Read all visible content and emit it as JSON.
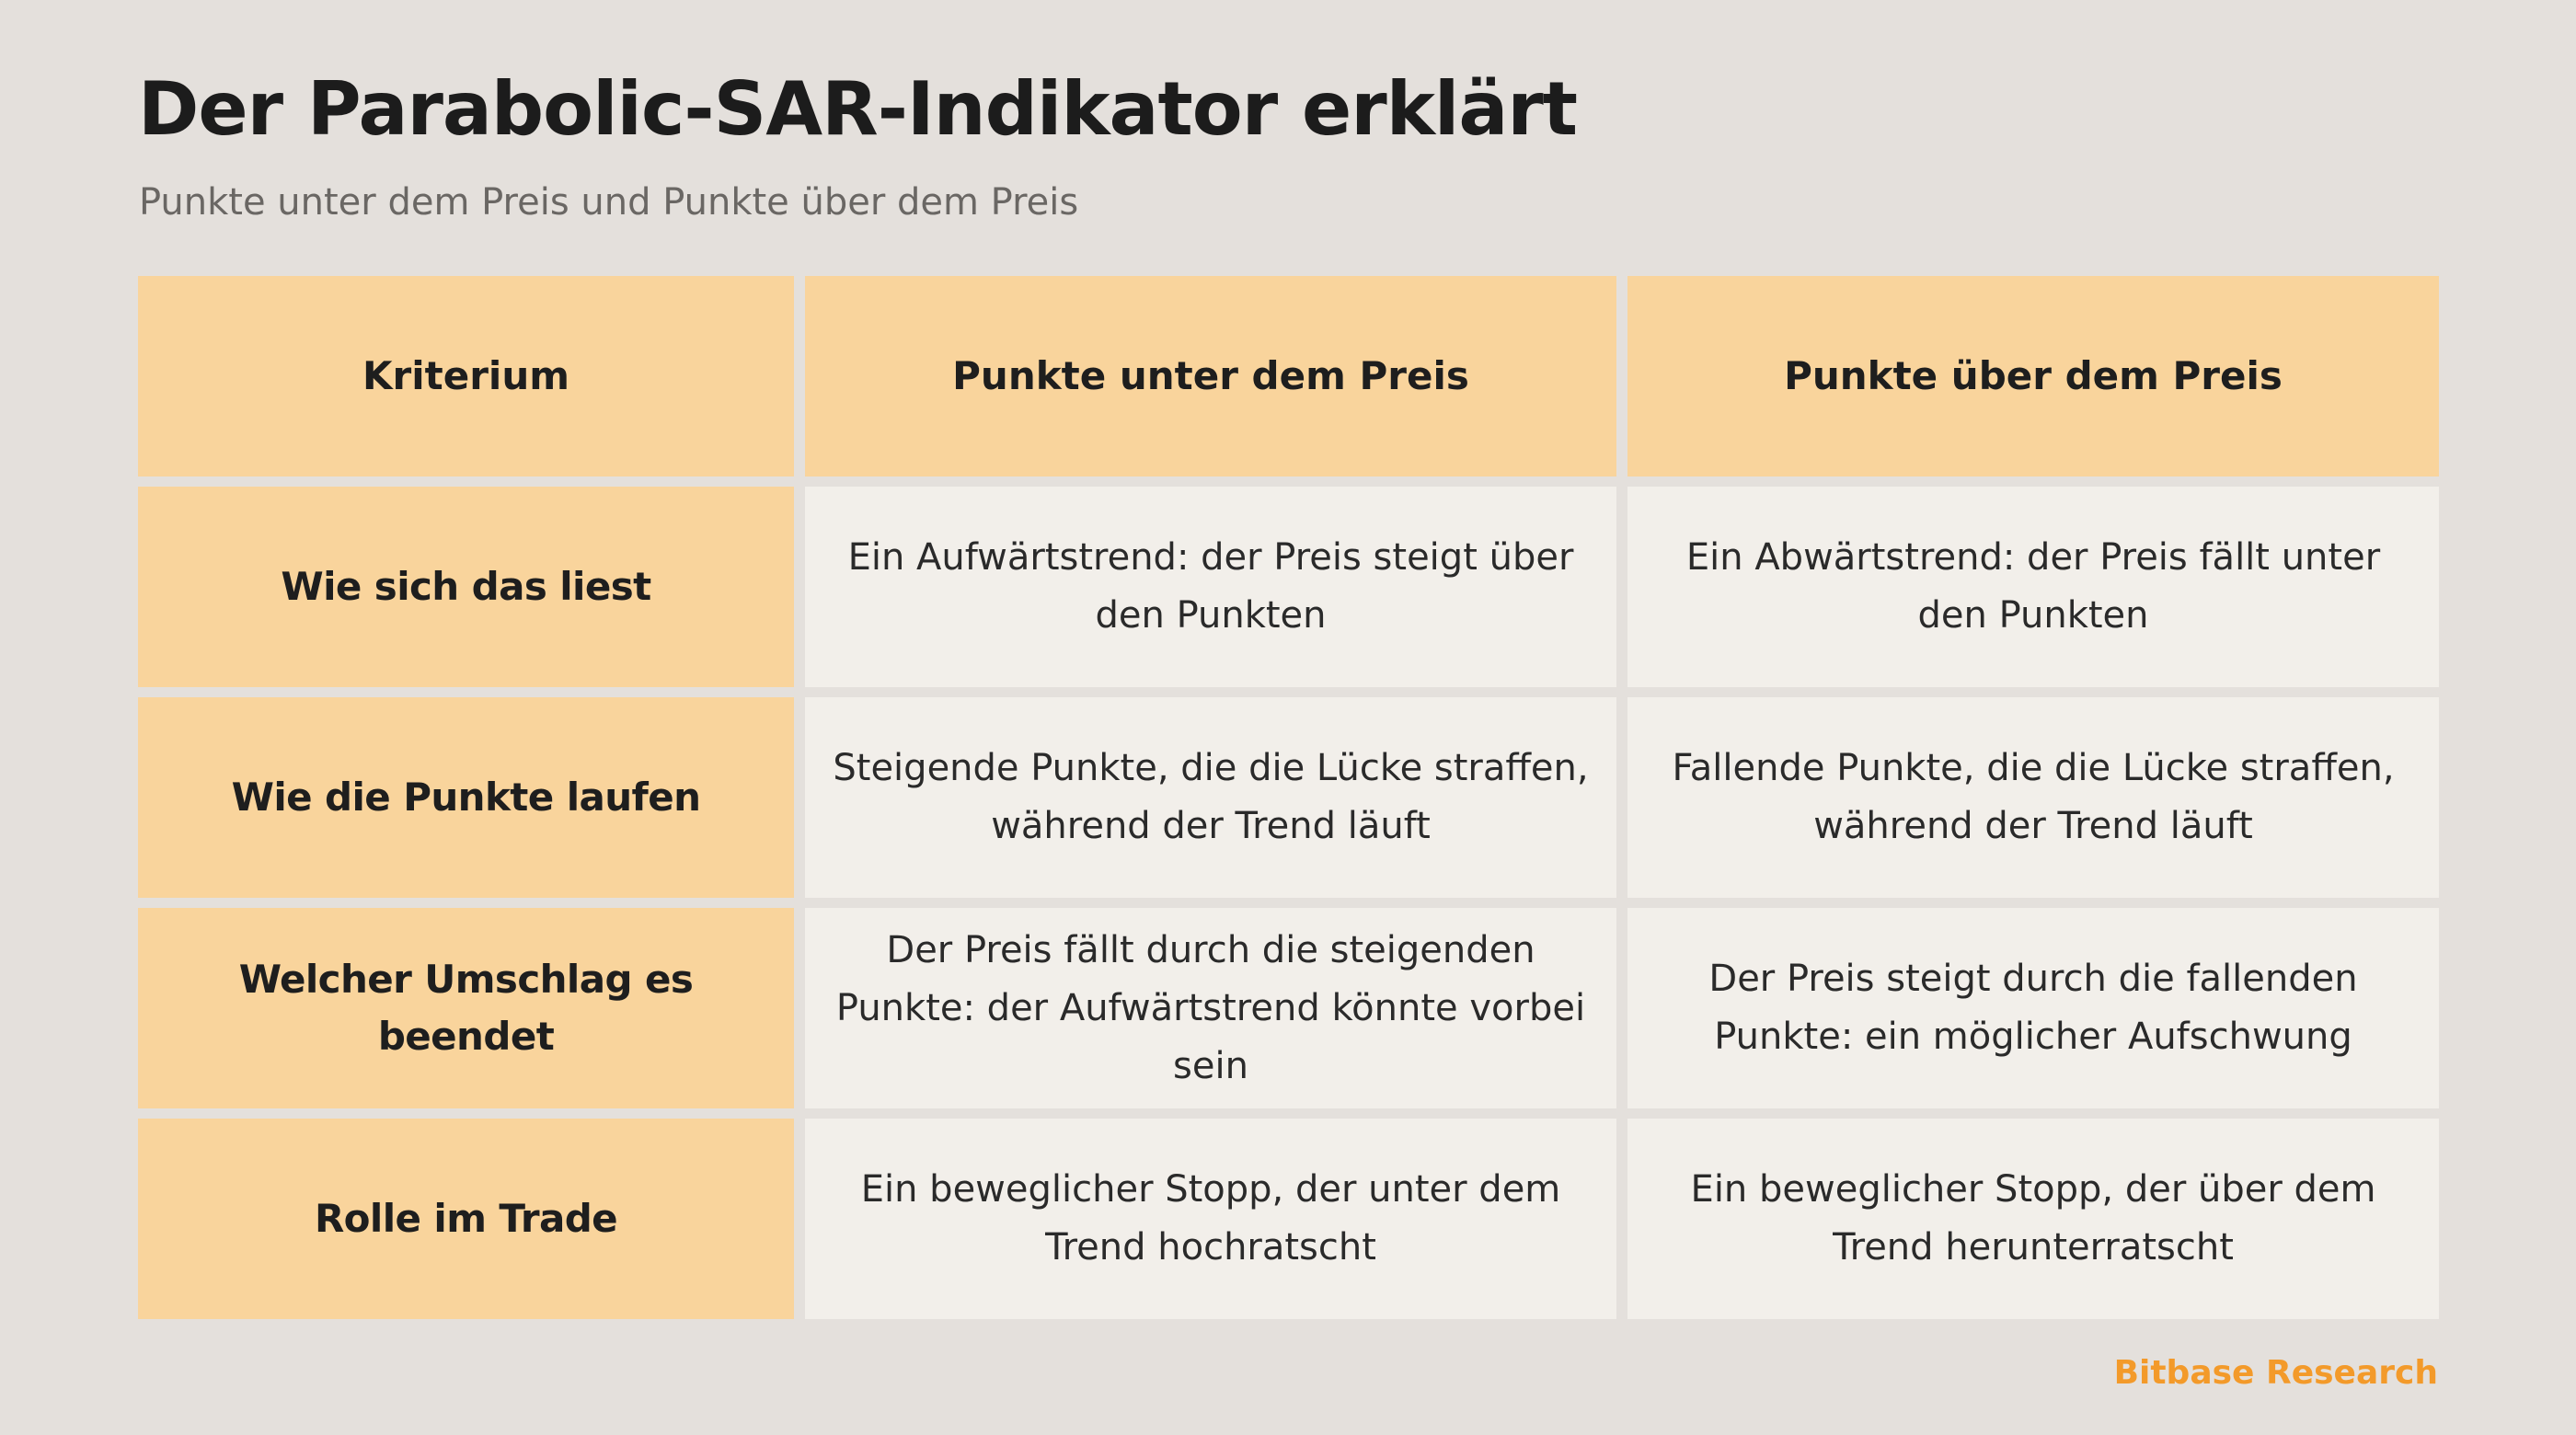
{
  "title": "Der Parabolic-SAR-Indikator erklärt",
  "subtitle": "Punkte unter dem Preis und Punkte über dem Preis",
  "table": {
    "headers": [
      "Kriterium",
      "Punkte unter dem Preis",
      "Punkte über dem Preis"
    ],
    "rows": [
      [
        "Wie sich das liest",
        "Ein Aufwärtstrend: der Preis steigt über den Punkten",
        "Ein Abwärtstrend: der Preis fällt unter den Punkten"
      ],
      [
        "Wie die Punkte laufen",
        "Steigende Punkte, die die Lücke straffen, während der Trend läuft",
        "Fallende Punkte, die die Lücke straffen, während der Trend läuft"
      ],
      [
        "Welcher Umschlag es beendet",
        "Der Preis fällt durch die steigenden Punkte: der Aufwärtstrend könnte vorbei sein",
        "Der Preis steigt durch die fallenden Punkte: ein möglicher Aufschwung"
      ],
      [
        "Rolle im Trade",
        "Ein beweglicher Stopp, der unter dem Trend hochratscht",
        "Ein beweglicher Stopp, der über dem Trend herunterratscht"
      ]
    ]
  },
  "footer": {
    "brand": "Bitbase Research"
  },
  "colors": {
    "background": "#e4e0dc",
    "header_fill": "#f9d49c",
    "body_fill": "#f2efea",
    "brand_accent": "#f39a2a"
  }
}
